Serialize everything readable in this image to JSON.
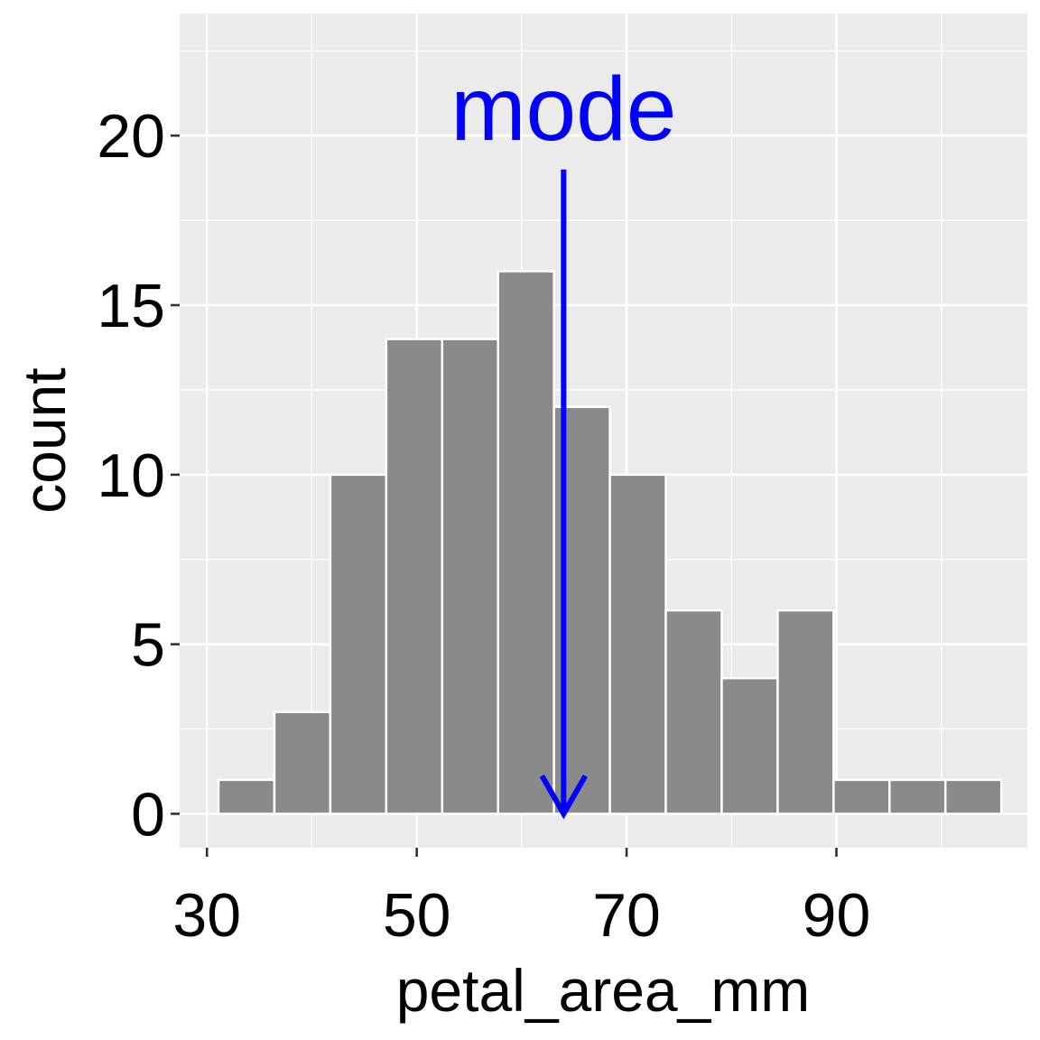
{
  "chart_data": {
    "type": "bar",
    "subtype": "histogram",
    "title": "",
    "xlabel": "petal_area_mm",
    "ylabel": "count",
    "x_ticks": [
      30,
      50,
      70,
      90
    ],
    "y_ticks": [
      0,
      5,
      10,
      15,
      20
    ],
    "xlim": [
      27.4,
      108.2
    ],
    "ylim": [
      -1.0,
      23.6
    ],
    "bin_width": 5.33,
    "bin_start": 31.1,
    "values": [
      1,
      3,
      10,
      14,
      14,
      16,
      12,
      10,
      6,
      4,
      6,
      1,
      1,
      1
    ],
    "grid": true,
    "annotation": {
      "text": "mode",
      "x": 64,
      "arrow_from_y": 19,
      "arrow_to_y": 0,
      "color": "#0000ff"
    },
    "colors": {
      "panel": "#ebebeb",
      "grid": "#ffffff",
      "bar_fill": "#868686",
      "bar_outline": "#ffffff",
      "annotation": "#0000ff"
    }
  }
}
